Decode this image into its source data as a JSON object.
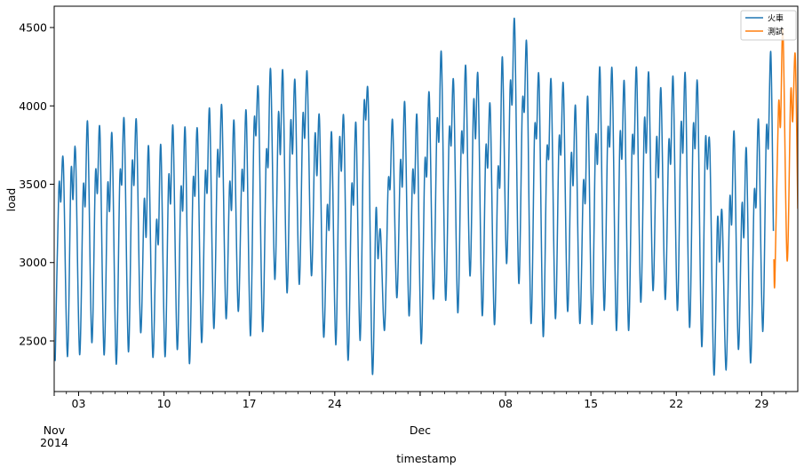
{
  "chart_data": {
    "type": "line",
    "xlabel": "timestamp",
    "ylabel": "load",
    "xlim": [
      "2014-11-01 00:00",
      "2014-12-31 23:00"
    ],
    "ylim": [
      2177,
      4636
    ],
    "grid": false,
    "legend_placement": "upper right",
    "y_ticks": [
      2500,
      3000,
      3500,
      4000,
      4500
    ],
    "x_major_ticks": [
      {
        "date": "2014-11-03",
        "label": "03"
      },
      {
        "date": "2014-11-10",
        "label": "10"
      },
      {
        "date": "2014-11-17",
        "label": "17"
      },
      {
        "date": "2014-11-24",
        "label": "24"
      },
      {
        "date": "2014-12-01",
        "label": ""
      },
      {
        "date": "2014-12-08",
        "label": "08"
      },
      {
        "date": "2014-12-15",
        "label": "15"
      },
      {
        "date": "2014-12-22",
        "label": "22"
      },
      {
        "date": "2014-12-29",
        "label": "29"
      }
    ],
    "x_month_labels": [
      {
        "date": "2014-11-01",
        "label": "Nov",
        "year": "2014"
      },
      {
        "date": "2014-12-01",
        "label": "Dec",
        "year": ""
      }
    ],
    "sample_hours": [
      2,
      9,
      13,
      18
    ],
    "series": [
      {
        "name": "火車",
        "color": "#1f77b4",
        "daily": [
          [
            "2014-11-01",
            [
              2372,
              3464,
              3388,
              3639
            ]
          ],
          [
            "2014-11-02",
            [
              2400,
              3569,
              3403,
              3707
            ]
          ],
          [
            "2014-11-03",
            [
              2413,
              3464,
              3365,
              3882
            ]
          ],
          [
            "2014-11-04",
            [
              2491,
              3554,
              3445,
              3840
            ]
          ],
          [
            "2014-11-05",
            [
              2413,
              3477,
              3331,
              3802
            ]
          ],
          [
            "2014-11-06",
            [
              2353,
              3530,
              3502,
              3888
            ]
          ],
          [
            "2014-11-07",
            [
              2432,
              3603,
              3496,
              3888
            ]
          ],
          [
            "2014-11-08",
            [
              2558,
              3394,
              3166,
              3730
            ]
          ],
          [
            "2014-11-09",
            [
              2400,
              3250,
              3126,
              3740
            ]
          ],
          [
            "2014-11-10",
            [
              2400,
              3525,
              3379,
              3852
            ]
          ],
          [
            "2014-11-11",
            [
              2448,
              3451,
              3337,
              3838
            ]
          ],
          [
            "2014-11-12",
            [
              2357,
              3493,
              3430,
              3831
            ]
          ],
          [
            "2014-11-13",
            [
              2491,
              3546,
              3451,
              3964
            ]
          ],
          [
            "2014-11-14",
            [
              2581,
              3679,
              3550,
              3983
            ]
          ],
          [
            "2014-11-15",
            [
              2647,
              3496,
              3341,
              3897
            ]
          ],
          [
            "2014-11-16",
            [
              2691,
              3563,
              3464,
              3949
            ]
          ],
          [
            "2014-11-17",
            [
              2533,
              3857,
              3812,
              4072
            ]
          ],
          [
            "2014-11-18",
            [
              2562,
              3673,
              3622,
              4224
            ]
          ],
          [
            "2014-11-19",
            [
              2894,
              3939,
              3692,
              4209
            ]
          ],
          [
            "2014-11-20",
            [
              2809,
              3878,
              3696,
              4148
            ]
          ],
          [
            "2014-11-21",
            [
              2862,
              3916,
              3797,
              4197
            ]
          ],
          [
            "2014-11-22",
            [
              2919,
              3810,
              3555,
              3914
            ]
          ],
          [
            "2014-11-23",
            [
              2531,
              3347,
              3217,
              3820
            ]
          ],
          [
            "2014-11-24",
            [
              2475,
              3754,
              3584,
              3897
            ]
          ],
          [
            "2014-11-25",
            [
              2380,
              3461,
              3376,
              3873
            ]
          ],
          [
            "2014-11-26",
            [
              2503,
              3948,
              3910,
              4027
            ]
          ],
          [
            "2014-11-27",
            [
              2295,
              3330,
              3026,
              3202
            ]
          ],
          [
            "2014-11-28",
            [
              2569,
              3498,
              3476,
              3897
            ]
          ],
          [
            "2014-11-29",
            [
              2777,
              3633,
              3489,
              4008
            ]
          ],
          [
            "2014-11-30",
            [
              2664,
              3565,
              3448,
              3920
            ]
          ],
          [
            "2014-12-01",
            [
              2484,
              3617,
              3557,
              4071
            ]
          ],
          [
            "2014-12-02",
            [
              2767,
              3878,
              3778,
              4322
            ]
          ],
          [
            "2014-12-03",
            [
              2764,
              3820,
              3750,
              4137
            ]
          ],
          [
            "2014-12-04",
            [
              2682,
              3791,
              3708,
              4241
            ]
          ],
          [
            "2014-12-05",
            [
              2915,
              4014,
              3791,
              4175
            ]
          ],
          [
            "2014-12-06",
            [
              2664,
              3712,
              3608,
              3986
            ]
          ],
          [
            "2014-12-07",
            [
              2607,
              3580,
              3500,
              4307
            ]
          ],
          [
            "2014-12-08",
            [
              2994,
              4118,
              4014,
              4524
            ]
          ],
          [
            "2014-12-09",
            [
              2871,
              3999,
              3967,
              4367
            ]
          ],
          [
            "2014-12-10",
            [
              2616,
              3822,
              3797,
              4162
            ]
          ],
          [
            "2014-12-11",
            [
              2531,
              3684,
              3670,
              4143
            ]
          ],
          [
            "2014-12-12",
            [
              2645,
              3759,
              3693,
              4118
            ]
          ],
          [
            "2014-12-13",
            [
              2692,
              3674,
              3495,
              3982
            ]
          ],
          [
            "2014-12-14",
            [
              2616,
              3500,
              3391,
              4046
            ]
          ],
          [
            "2014-12-15",
            [
              2607,
              3778,
              3636,
              4226
            ]
          ],
          [
            "2014-12-16",
            [
              2698,
              3816,
              3746,
              4207
            ]
          ],
          [
            "2014-12-17",
            [
              2569,
              3791,
              3665,
              4128
            ]
          ],
          [
            "2014-12-18",
            [
              2569,
              3759,
              3703,
              4222
            ]
          ],
          [
            "2014-12-19",
            [
              2749,
              3891,
              3703,
              4194
            ]
          ],
          [
            "2014-12-20",
            [
              2824,
              3784,
              3546,
              4099
            ]
          ],
          [
            "2014-12-21",
            [
              2767,
              3754,
              3636,
              4165
            ]
          ],
          [
            "2014-12-22",
            [
              2696,
              3859,
              3703,
              4179
            ]
          ],
          [
            "2014-12-23",
            [
              2588,
              3835,
              3731,
              4118
            ]
          ],
          [
            "2014-12-24",
            [
              2465,
              3754,
              3595,
              3731
            ]
          ],
          [
            "2014-12-25",
            [
              2286,
              3274,
              3004,
              3321
            ]
          ],
          [
            "2014-12-26",
            [
              2314,
              3391,
              3249,
              3822
            ]
          ],
          [
            "2014-12-27",
            [
              2450,
              3362,
              3164,
              3716
            ]
          ],
          [
            "2014-12-28",
            [
              2361,
              3423,
              3362,
              3897
            ]
          ],
          [
            "2014-12-29",
            [
              2560,
              3825,
              3737,
              4339
            ]
          ]
        ],
        "extra_points": [
          [
            "2014-12-29 23:00",
            3202
          ]
        ]
      },
      {
        "name": "測試",
        "color": "#ff7f0e",
        "points": [
          [
            "2014-12-30 00:00",
            3022
          ],
          [
            "2014-12-30 02:00",
            2890
          ],
          [
            "2014-12-30 09:00",
            3995
          ],
          [
            "2014-12-30 13:00",
            3873
          ],
          [
            "2014-12-30 18:00",
            4470
          ],
          [
            "2014-12-31 02:00",
            3013
          ],
          [
            "2014-12-31 09:00",
            4080
          ],
          [
            "2014-12-31 13:00",
            3901
          ],
          [
            "2014-12-31 18:00",
            4326
          ],
          [
            "2014-12-31 23:00",
            3344
          ]
        ]
      }
    ]
  }
}
